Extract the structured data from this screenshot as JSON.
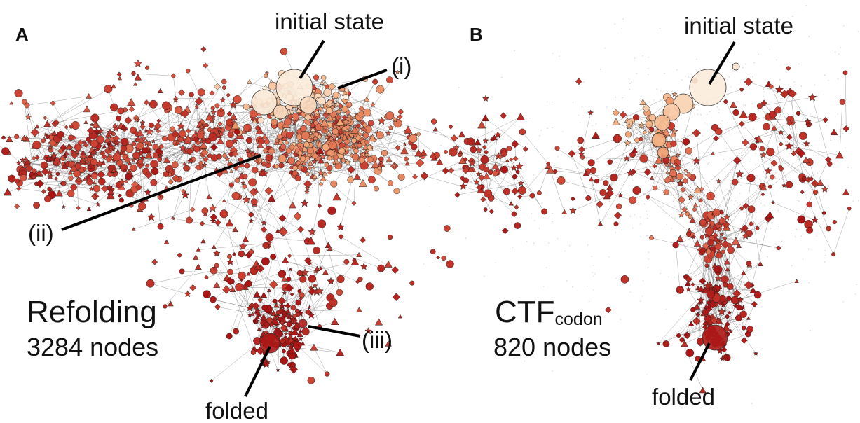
{
  "panels": [
    {
      "label": "A",
      "title": "Refolding",
      "subtitle": "3284 nodes",
      "annotations": [
        "initial state",
        "(i)",
        "(ii)",
        "(iii)",
        "folded"
      ]
    },
    {
      "label": "B",
      "title": "CTF",
      "title_subscript": "codon",
      "subtitle": "820 nodes",
      "annotations": [
        "initial state",
        "folded"
      ]
    }
  ]
}
